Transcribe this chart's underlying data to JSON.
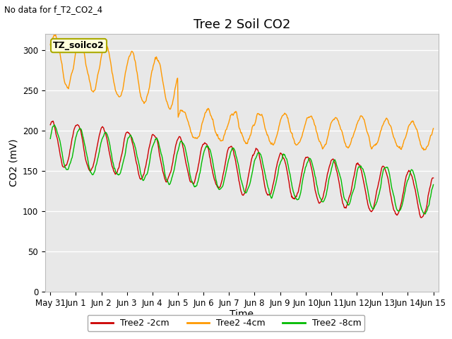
{
  "title": "Tree 2 Soil CO2",
  "no_data_text": "No data for f_T2_CO2_4",
  "xlabel": "Time",
  "ylabel": "CO2 (mV)",
  "ylim": [
    0,
    320
  ],
  "yticks": [
    0,
    50,
    100,
    150,
    200,
    250,
    300
  ],
  "background_color": "#e8e8e8",
  "fig_background": "#ffffff",
  "legend_entries": [
    "Tree2 -2cm",
    "Tree2 -4cm",
    "Tree2 -8cm"
  ],
  "legend_colors": [
    "#cc0000",
    "#ff9900",
    "#00bb00"
  ],
  "box_label": "TZ_soilco2",
  "box_bg": "#ffffdd",
  "box_border": "#aaaa00",
  "title_fontsize": 13,
  "axis_label_fontsize": 10,
  "tick_fontsize": 8.5,
  "linewidth": 1.0
}
